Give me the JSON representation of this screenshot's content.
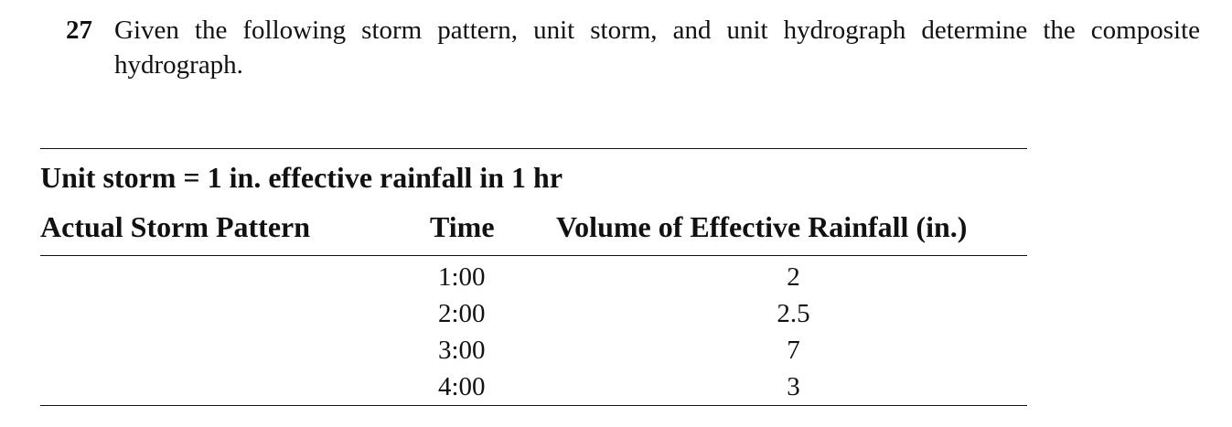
{
  "problem": {
    "number": "27",
    "text": "Given the following storm pattern, unit storm, and unit hydrograph determine the composite hydrograph."
  },
  "table": {
    "unit_storm": "Unit storm = 1 in. effective rainfall in 1 hr",
    "headers": {
      "pattern": "Actual Storm Pattern",
      "time": "Time",
      "volume": "Volume of Effective Rainfall (in.)"
    },
    "rows": [
      {
        "time": "1:00",
        "volume": "2"
      },
      {
        "time": "2:00",
        "volume": "2.5"
      },
      {
        "time": "3:00",
        "volume": "7"
      },
      {
        "time": "4:00",
        "volume": "3"
      }
    ]
  }
}
